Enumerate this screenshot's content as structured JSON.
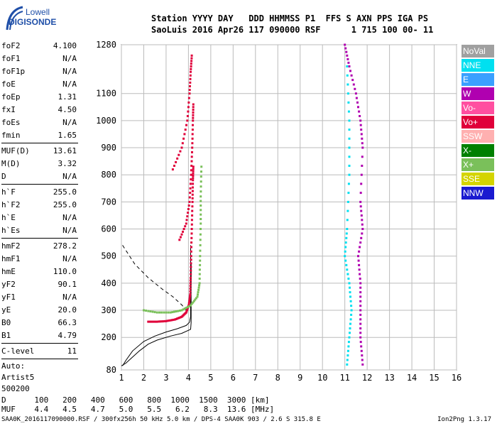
{
  "logo": {
    "line1": "Lowell",
    "line2": "DIGISONDE"
  },
  "header": {
    "line1": "Station YYYY DAY   DDD HHMMSS P1  FFS S AXN PPS IGA PS",
    "line2": "SaoLuis 2016 Apr26 117 090000 RSF      1 715 100 00- 11"
  },
  "params": {
    "groups": [
      [
        {
          "k": "foF2",
          "v": "4.100"
        },
        {
          "k": "foF1",
          "v": "N/A"
        },
        {
          "k": "foF1p",
          "v": "N/A"
        },
        {
          "k": "foE",
          "v": "N/A"
        },
        {
          "k": "foEp",
          "v": "1.31"
        },
        {
          "k": "fxI",
          "v": "4.50"
        },
        {
          "k": "foEs",
          "v": "N/A"
        },
        {
          "k": "fmin",
          "v": "1.65"
        }
      ],
      [
        {
          "k": "MUF(D)",
          "v": "13.61"
        },
        {
          "k": "M(D)",
          "v": "3.32"
        },
        {
          "k": "D",
          "v": "N/A"
        }
      ],
      [
        {
          "k": "h`F",
          "v": "255.0"
        },
        {
          "k": "h`F2",
          "v": "255.0"
        },
        {
          "k": "h`E",
          "v": "N/A"
        },
        {
          "k": "h`Es",
          "v": "N/A"
        }
      ],
      [
        {
          "k": "hmF2",
          "v": "278.2"
        },
        {
          "k": "hmF1",
          "v": "N/A"
        },
        {
          "k": "hmE",
          "v": "110.0"
        },
        {
          "k": "yF2",
          "v": "90.1"
        },
        {
          "k": "yF1",
          "v": "N/A"
        },
        {
          "k": "yE",
          "v": "20.0"
        },
        {
          "k": "B0",
          "v": "66.3"
        },
        {
          "k": "B1",
          "v": "4.79"
        }
      ],
      [
        {
          "k": "C-level",
          "v": "11"
        }
      ]
    ],
    "auto": [
      "Auto:",
      "Artist5",
      "500200"
    ]
  },
  "legend": [
    {
      "label": "NoVal",
      "color": "#a0a0a0"
    },
    {
      "label": "NNE",
      "color": "#00e0f0"
    },
    {
      "label": "E",
      "color": "#3aa0ff"
    },
    {
      "label": "W",
      "color": "#b000b0"
    },
    {
      "label": "Vo-",
      "color": "#ff4fa0"
    },
    {
      "label": "Vo+",
      "color": "#e0003a"
    },
    {
      "label": "SSW",
      "color": "#ffb0b0"
    },
    {
      "label": "X-",
      "color": "#008000"
    },
    {
      "label": "X+",
      "color": "#7ac05a"
    },
    {
      "label": "SSE",
      "color": "#d4d400"
    },
    {
      "label": "NNW",
      "color": "#1a1ad0"
    }
  ],
  "muf_table": {
    "d_label": "D",
    "d_values": [
      "100",
      "200",
      "400",
      "600",
      "800",
      "1000",
      "1500",
      "3000"
    ],
    "d_unit": "[km]",
    "muf_label": "MUF",
    "muf_values": [
      "4.4",
      "4.5",
      "4.7",
      "5.0",
      "5.5",
      "6.2",
      "8.3",
      "13.6"
    ],
    "muf_unit": "[MHz]"
  },
  "footer": "SAA0K_2016117090000.RSF / 300fx256h 50 kHz 5.0 km / DPS-4 SAA0K 903 / 2.6 S 315.8 E",
  "version": "Ion2Png 1.3.17",
  "chart_data": {
    "type": "scatter",
    "x_ticks": [
      "1",
      "2",
      "3",
      "4",
      "5",
      "6",
      "7",
      "8",
      "9",
      "10",
      "11",
      "12",
      "13",
      "14",
      "15",
      "16"
    ],
    "y_ticks": [
      "80",
      "200",
      "300",
      "400",
      "500",
      "600",
      "700",
      "800",
      "900",
      "1000",
      "1100",
      "1280"
    ],
    "x_range": [
      1,
      16
    ],
    "y_range": [
      80,
      1280
    ],
    "xlabel": "",
    "ylabel": "",
    "grid": true,
    "series": [
      {
        "name": "Vo+",
        "color": "#e0003a",
        "points": [
          [
            2.2,
            258
          ],
          [
            2.6,
            258
          ],
          [
            3.0,
            260
          ],
          [
            3.4,
            266
          ],
          [
            3.7,
            276
          ],
          [
            3.9,
            292
          ],
          [
            4.02,
            320
          ],
          [
            4.08,
            360
          ],
          [
            4.1,
            420
          ],
          [
            4.12,
            500
          ],
          [
            4.15,
            600
          ],
          [
            4.18,
            700
          ],
          [
            4.2,
            780
          ],
          [
            4.22,
            830
          ]
        ]
      },
      {
        "name": "Vo+ (2nd)",
        "color": "#e0003a",
        "points": [
          [
            3.6,
            560
          ],
          [
            3.9,
            620
          ],
          [
            4.05,
            700
          ],
          [
            4.12,
            800
          ],
          [
            4.17,
            900
          ],
          [
            4.2,
            1000
          ],
          [
            4.22,
            1060
          ]
        ]
      },
      {
        "name": "Vo+ (3rd)",
        "color": "#e0003a",
        "points": [
          [
            3.3,
            820
          ],
          [
            3.7,
            900
          ],
          [
            3.95,
            1000
          ],
          [
            4.05,
            1100
          ],
          [
            4.1,
            1180
          ],
          [
            4.15,
            1240
          ]
        ]
      },
      {
        "name": "X+",
        "color": "#7ac05a",
        "points": [
          [
            2.0,
            300
          ],
          [
            2.6,
            292
          ],
          [
            3.2,
            292
          ],
          [
            3.7,
            300
          ],
          [
            4.1,
            318
          ],
          [
            4.4,
            350
          ],
          [
            4.5,
            400
          ],
          [
            4.52,
            500
          ],
          [
            4.55,
            620
          ],
          [
            4.55,
            720
          ],
          [
            4.58,
            830
          ]
        ]
      },
      {
        "name": "Vo+ / W (scattered)",
        "color": "#b000b0",
        "points": [
          [
            11.0,
            1280
          ],
          [
            11.2,
            1200
          ],
          [
            11.5,
            1100
          ],
          [
            11.7,
            1000
          ],
          [
            11.8,
            900
          ],
          [
            11.7,
            700
          ],
          [
            11.8,
            600
          ],
          [
            11.6,
            500
          ],
          [
            11.7,
            400
          ],
          [
            11.7,
            300
          ],
          [
            11.7,
            200
          ],
          [
            11.8,
            100
          ]
        ]
      },
      {
        "name": "NNE / X+ (scattered)",
        "color": "#00e0f0",
        "points": [
          [
            11.1,
            1200
          ],
          [
            11.2,
            1000
          ],
          [
            11.2,
            800
          ],
          [
            11.1,
            600
          ],
          [
            11.0,
            500
          ],
          [
            11.2,
            400
          ],
          [
            11.3,
            300
          ],
          [
            11.2,
            200
          ],
          [
            11.1,
            100
          ]
        ]
      }
    ],
    "profile": [
      [
        1.05,
        95
      ],
      [
        1.2,
        115
      ],
      [
        1.5,
        150
      ],
      [
        2.0,
        185
      ],
      [
        2.5,
        205
      ],
      [
        3.0,
        220
      ],
      [
        3.5,
        232
      ],
      [
        3.9,
        244
      ],
      [
        4.05,
        256
      ],
      [
        4.1,
        278
      ],
      [
        4.1,
        350
      ],
      [
        4.1,
        400
      ],
      [
        4.1,
        450
      ],
      [
        4.1,
        500
      ],
      [
        4.1,
        540
      ]
    ],
    "profile_dashed": [
      [
        1.05,
        540
      ],
      [
        1.6,
        470
      ],
      [
        2.2,
        420
      ],
      [
        2.8,
        380
      ],
      [
        3.3,
        350
      ],
      [
        3.7,
        320
      ],
      [
        4.0,
        290
      ]
    ],
    "profile_lower": [
      [
        1.0,
        95
      ],
      [
        1.2,
        105
      ],
      [
        1.4,
        120
      ],
      [
        1.8,
        150
      ],
      [
        2.2,
        175
      ],
      [
        2.6,
        190
      ],
      [
        3.2,
        205
      ],
      [
        3.7,
        215
      ],
      [
        4.1,
        230
      ],
      [
        4.12,
        255
      ],
      [
        4.12,
        280
      ],
      [
        4.12,
        320
      ],
      [
        4.12,
        400
      ],
      [
        4.12,
        470
      ]
    ]
  }
}
